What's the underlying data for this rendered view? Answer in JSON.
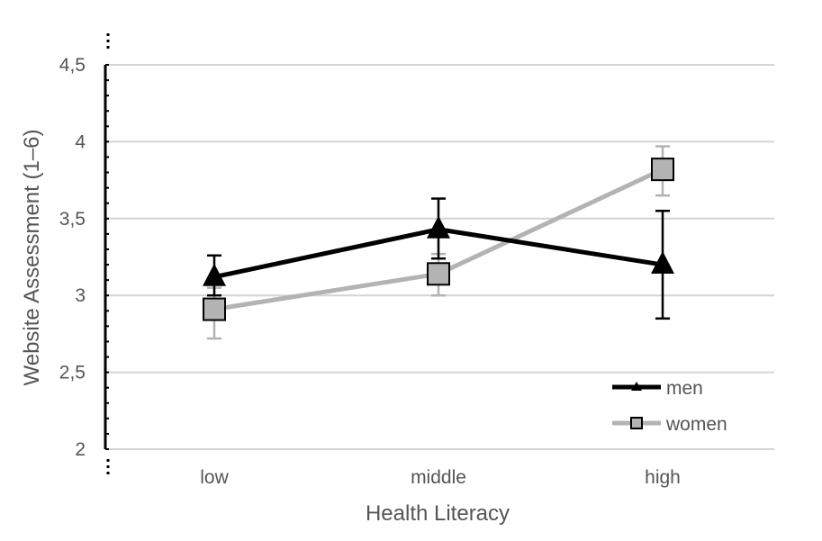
{
  "chart_data": {
    "type": "line",
    "xlabel": "Health Literacy",
    "ylabel": "Website Assessment (1–6)",
    "categories": [
      "low",
      "middle",
      "high"
    ],
    "ylim": [
      2,
      4.5
    ],
    "yticks": [
      2,
      2.5,
      3,
      3.5,
      4,
      4.5
    ],
    "ytick_labels": [
      "2",
      "2,5",
      "3",
      "3,5",
      "4",
      "4,5"
    ],
    "y_axis_break": true,
    "grid": true,
    "legend_position": "bottom-right",
    "series": [
      {
        "name": "men",
        "marker": "triangle",
        "color": "#000000",
        "values": [
          3.12,
          3.43,
          3.2
        ],
        "error_low": [
          3.0,
          3.24,
          2.85
        ],
        "error_high": [
          3.26,
          3.63,
          3.55
        ]
      },
      {
        "name": "women",
        "marker": "square",
        "color": "#b3b3b3",
        "values": [
          2.91,
          3.14,
          3.82
        ],
        "error_low": [
          2.72,
          3.0,
          3.65
        ],
        "error_high": [
          3.05,
          3.27,
          3.97
        ]
      }
    ]
  }
}
